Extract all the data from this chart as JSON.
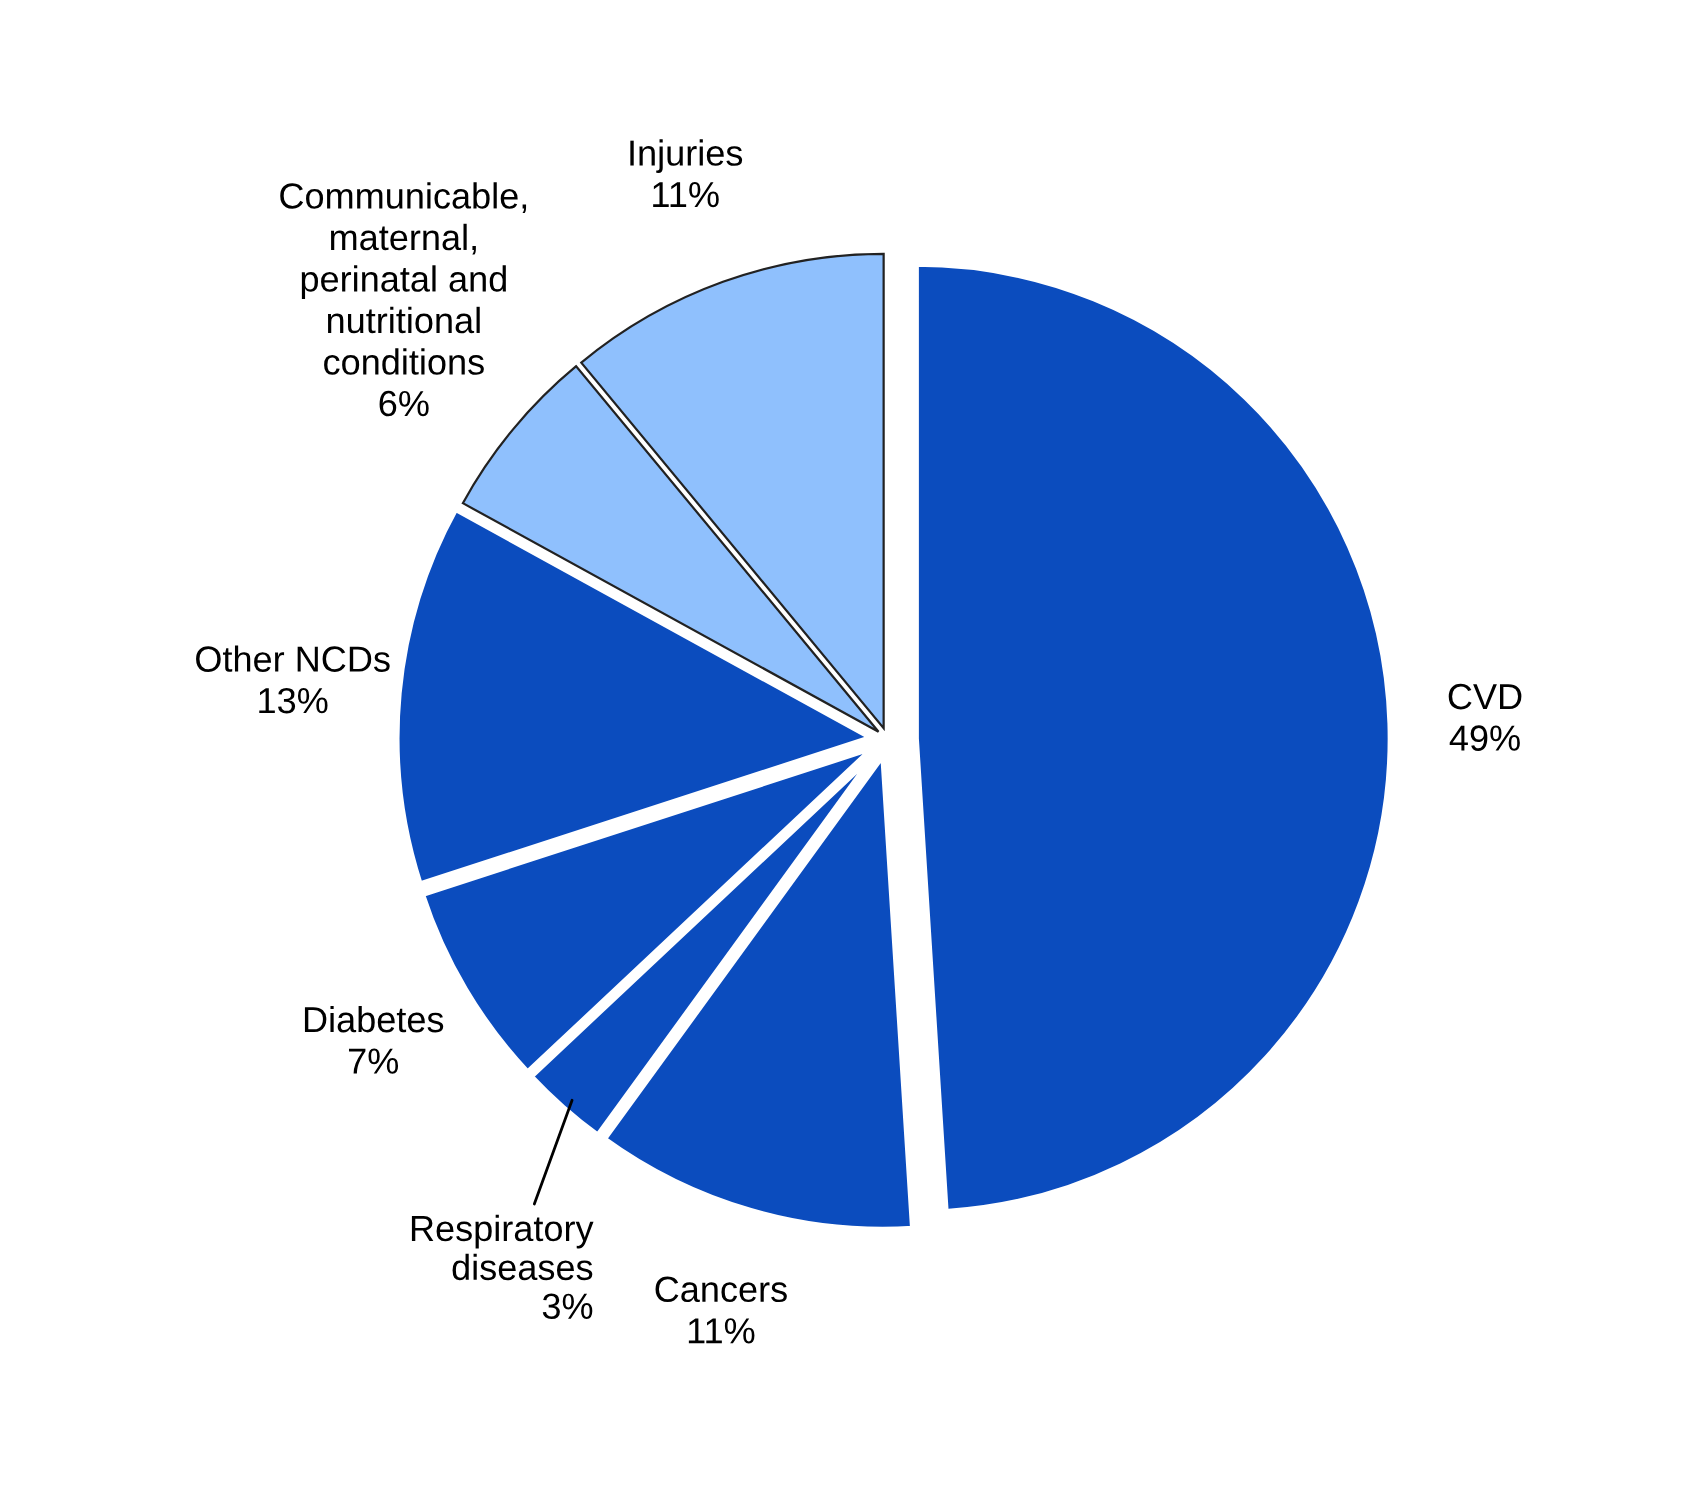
{
  "chart_data": {
    "type": "pie",
    "categories": [
      "CVD",
      "Cancers",
      "Respiratory\ndiseases",
      "Diabetes",
      "Other NCDs",
      "Communicable,\nmaternal,\nperinatal and\nnutritional\nconditions",
      "Injuries"
    ],
    "values": [
      49,
      11,
      3,
      7,
      13,
      6,
      11
    ],
    "value_labels": [
      "49%",
      "11%",
      "3%",
      "7%",
      "13%",
      "6%",
      "11%"
    ],
    "colors": [
      "#0b4cbe",
      "#0b4cbe",
      "#0b4cbe",
      "#0b4cbe",
      "#0b4cbe",
      "#8fc0fd",
      "#8fc0fd"
    ]
  }
}
